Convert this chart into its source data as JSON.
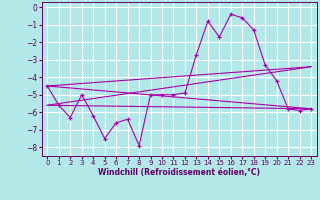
{
  "xlabel": "Windchill (Refroidissement éolien,°C)",
  "bg_color": "#b2e8e8",
  "grid_color": "#ffffff",
  "line_color": "#aa00aa",
  "xlim": [
    -0.5,
    23.5
  ],
  "ylim": [
    -8.5,
    0.3
  ],
  "xticks": [
    0,
    1,
    2,
    3,
    4,
    5,
    6,
    7,
    8,
    9,
    10,
    11,
    12,
    13,
    14,
    15,
    16,
    17,
    18,
    19,
    20,
    21,
    22,
    23
  ],
  "yticks": [
    0,
    -1,
    -2,
    -3,
    -4,
    -5,
    -6,
    -7,
    -8
  ],
  "main_line": {
    "x": [
      0,
      1,
      2,
      3,
      4,
      5,
      6,
      7,
      8,
      9,
      10,
      11,
      12,
      13,
      14,
      15,
      16,
      17,
      18,
      19,
      20,
      21,
      22,
      23
    ],
    "y": [
      -4.5,
      -5.6,
      -6.3,
      -5.0,
      -6.2,
      -7.5,
      -6.6,
      -6.4,
      -7.9,
      -5.0,
      -5.0,
      -5.0,
      -4.9,
      -2.7,
      -0.8,
      -1.7,
      -0.4,
      -0.6,
      -1.3,
      -3.3,
      -4.2,
      -5.8,
      -5.9,
      -5.8
    ]
  },
  "trend_lines": [
    {
      "x": [
        0,
        23
      ],
      "y": [
        -4.5,
        -5.8
      ]
    },
    {
      "x": [
        0,
        23
      ],
      "y": [
        -5.6,
        -5.8
      ]
    },
    {
      "x": [
        0,
        23
      ],
      "y": [
        -4.5,
        -3.4
      ]
    },
    {
      "x": [
        0,
        23
      ],
      "y": [
        -5.6,
        -3.4
      ]
    }
  ]
}
